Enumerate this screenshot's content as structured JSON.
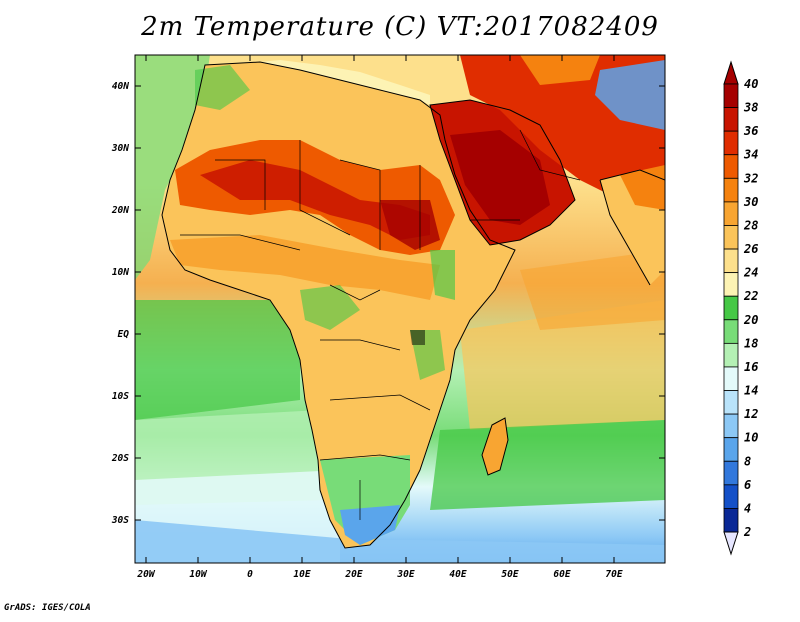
{
  "title": "2m Temperature (C) VT:2017082409",
  "credit": "GrADS: IGES/COLA",
  "map": {
    "lat_labels": [
      "40N",
      "30N",
      "20N",
      "10N",
      "EQ",
      "10S",
      "20S",
      "30S"
    ],
    "lon_labels": [
      "20W",
      "10W",
      "0",
      "10E",
      "20E",
      "30E",
      "40E",
      "50E",
      "60E",
      "70E"
    ]
  },
  "colorbar": {
    "labels": [
      "40",
      "38",
      "36",
      "34",
      "32",
      "30",
      "28",
      "26",
      "24",
      "22",
      "20",
      "18",
      "16",
      "14",
      "12",
      "10",
      "8",
      "6",
      "4",
      "2"
    ],
    "colors": [
      "#a50000",
      "#c81400",
      "#e02d00",
      "#ee5a00",
      "#f5820f",
      "#f8a532",
      "#fbc45a",
      "#fde08c",
      "#fdf3b4",
      "#46c846",
      "#78dc78",
      "#b4f0b4",
      "#e4fafa",
      "#b9e3fa",
      "#8cc8f5",
      "#5aa5eb",
      "#3278dc",
      "#1450c8",
      "#0a2896",
      "#e6e6ff"
    ]
  }
}
